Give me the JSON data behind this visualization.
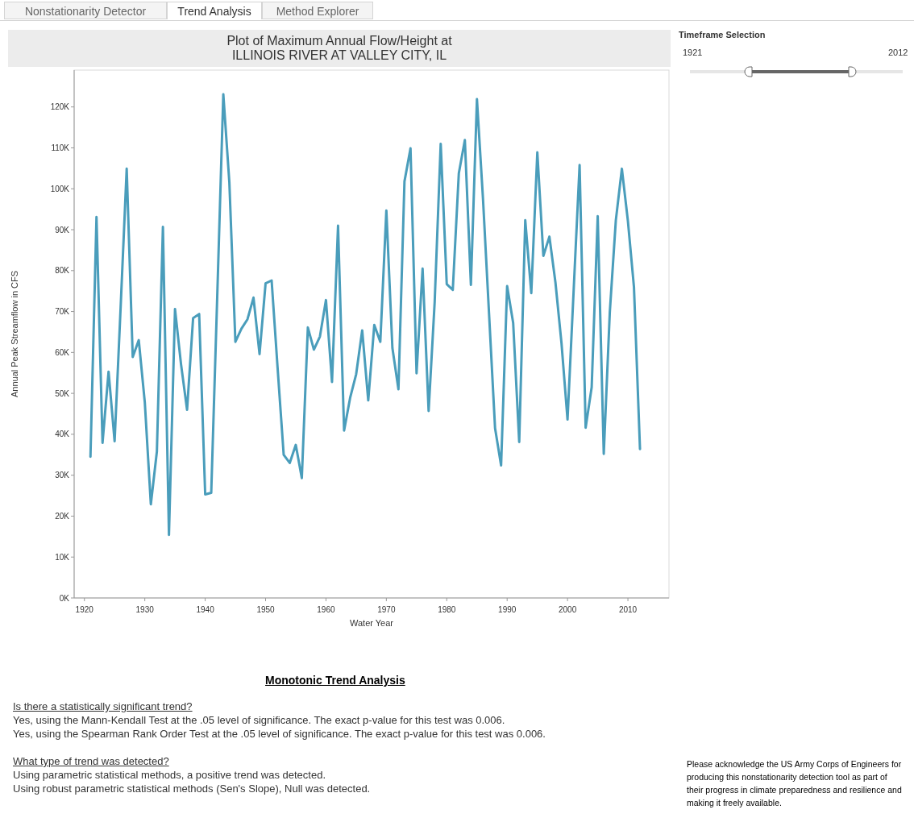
{
  "chart_data": {
    "type": "line",
    "title": "Plot of Maximum Annual Flow/Height at\nILLINOIS RIVER AT VALLEY CITY, IL",
    "xlabel": "Water Year",
    "ylabel": "Annual Peak Streamflow in CFS",
    "x": [
      1921,
      1922,
      1923,
      1924,
      1925,
      1926,
      1927,
      1928,
      1929,
      1930,
      1931,
      1932,
      1933,
      1934,
      1935,
      1936,
      1937,
      1938,
      1939,
      1940,
      1941,
      1942,
      1943,
      1944,
      1945,
      1946,
      1947,
      1948,
      1949,
      1950,
      1951,
      1952,
      1953,
      1954,
      1955,
      1956,
      1957,
      1958,
      1959,
      1960,
      1961,
      1962,
      1963,
      1964,
      1965,
      1966,
      1967,
      1968,
      1969,
      1970,
      1971,
      1972,
      1973,
      1974,
      1975,
      1976,
      1977,
      1978,
      1979,
      1980,
      1981,
      1982,
      1983,
      1984,
      1985,
      1986,
      1987,
      1988,
      1989,
      1990,
      1991,
      1992,
      1993,
      1994,
      1995,
      1996,
      1997,
      1998,
      1999,
      2000,
      2001,
      2002,
      2003,
      2004,
      2005,
      2006,
      2007,
      2008,
      2009,
      2010,
      2011,
      2012
    ],
    "series": [
      {
        "color": "#4a9dbb",
        "values": [
          34.5,
          93.1,
          37.9,
          55.3,
          38.3,
          71.1,
          104.9,
          58.9,
          63.0,
          47.8,
          22.9,
          35.8,
          90.7,
          15.4,
          70.6,
          57.1,
          46.0,
          68.4,
          69.4,
          25.3,
          25.7,
          74,
          123.1,
          101.6,
          62.6,
          65.8,
          68.1,
          73.4,
          59.6,
          76.9,
          77.6,
          56,
          35.0,
          33.0,
          37.4,
          29.3,
          66.1,
          60.7,
          63.9,
          72.8,
          52.8,
          91.0,
          40.9,
          48.9,
          54.7,
          65.4,
          48.3,
          66.7,
          62.6,
          94.7,
          61.1,
          51.0,
          101.8,
          109.9,
          54.9,
          80.5,
          45.7,
          72.3,
          111.0,
          76.7,
          75.3,
          103.8,
          111.9,
          76.5,
          121.9,
          97.6,
          69.6,
          41.5,
          32.4,
          76.2,
          67.2,
          38.1,
          92.3,
          74.5,
          108.9,
          83.6,
          88.3,
          77.1,
          62.3,
          43.6,
          74.7,
          105.8,
          41.6,
          51.5,
          93.3,
          35.2,
          69.8,
          92.3,
          104.9,
          92.1,
          76.0,
          36.4
        ]
      }
    ],
    "xlim": [
      1918.3,
      2016.8
    ],
    "xticks": [
      1920,
      1930,
      1940,
      1950,
      1960,
      1970,
      1980,
      1990,
      2000,
      2010
    ],
    "ylim": [
      0,
      129
    ],
    "yticks": [
      {
        "value": 0,
        "label": "0K"
      },
      {
        "value": 10,
        "label": "10K"
      },
      {
        "value": 20,
        "label": "20K"
      },
      {
        "value": 30,
        "label": "30K"
      },
      {
        "value": 40,
        "label": "40K"
      },
      {
        "value": 50,
        "label": "50K"
      },
      {
        "value": 60,
        "label": "60K"
      },
      {
        "value": 70,
        "label": "70K"
      },
      {
        "value": 80,
        "label": "80K"
      },
      {
        "value": 90,
        "label": "90K"
      },
      {
        "value": 100,
        "label": "100K"
      },
      {
        "value": 110,
        "label": "110K"
      },
      {
        "value": 120,
        "label": "120K"
      }
    ],
    "grid": false,
    "marker": "none",
    "line_style": "solid",
    "annotations": [
      "Nonstationarity Detector",
      "Trend Analysis",
      "Method Explorer",
      "Timeframe Selection",
      "1921",
      "2012",
      "Monotonic Trend Analysis",
      "Is there a statistically significant trend?",
      "Yes, using the Mann-Kendall Test at the .05 level of significance. The exact p-value for this test was 0.006.",
      "Yes, using the Spearman Rank Order Test at the .05 level of significance. The exact p-value for this test was 0.006.",
      "What type of trend was detected?",
      "Using parametric statistical methods, a positive trend was detected.",
      "Using robust parametric statistical methods (Sen's Slope), Null was detected.",
      "Please acknowledge the US Army Corps of Engineers for producing this nonstationarity detection tool as part of their progress in climate preparedness and resilience and making it freely available."
    ]
  }
}
